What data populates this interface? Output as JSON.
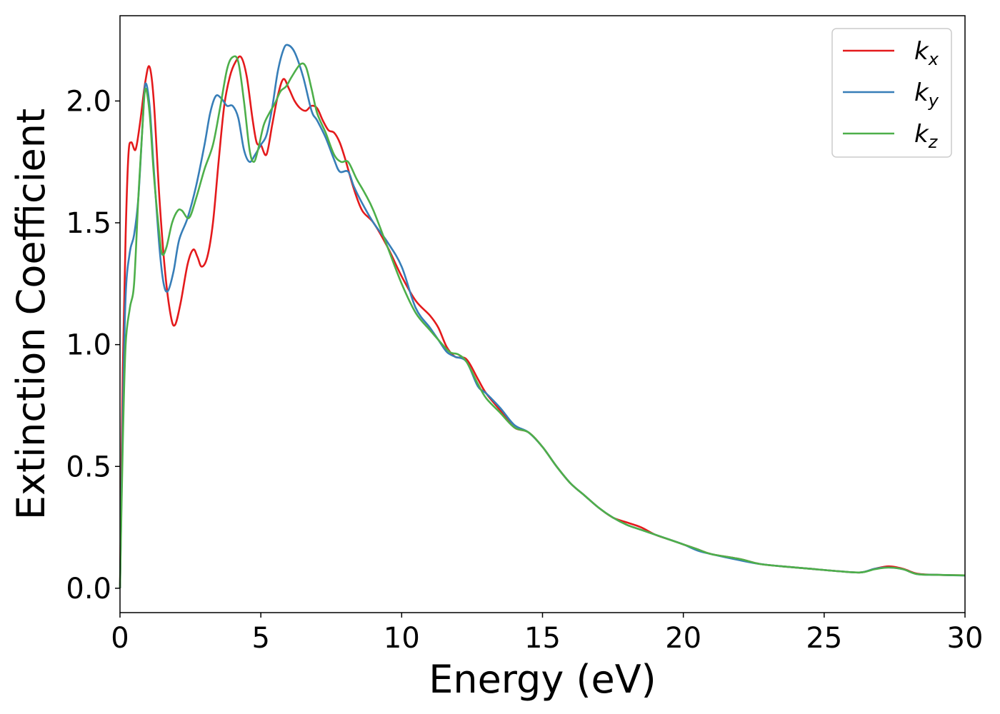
{
  "chart_data": {
    "type": "line",
    "title": "",
    "xlabel": "Energy (eV)",
    "ylabel": "Extinction Coefficient",
    "xlim": [
      0,
      30
    ],
    "ylim": [
      -0.1,
      2.35
    ],
    "xticks": [
      0,
      5,
      10,
      15,
      20,
      25,
      30
    ],
    "xtick_labels": [
      "0",
      "5",
      "10",
      "15",
      "20",
      "25",
      "30"
    ],
    "yticks": [
      0.0,
      0.5,
      1.0,
      1.5,
      2.0
    ],
    "ytick_labels": [
      "0.0",
      "0.5",
      "1.0",
      "1.5",
      "2.0"
    ],
    "grid": false,
    "legend_position": "top-right",
    "series": [
      {
        "name": "k",
        "subscript": "x",
        "color": "#e41a1c",
        "points": [
          [
            0,
            0
          ],
          [
            0.1,
            0.9
          ],
          [
            0.2,
            1.45
          ],
          [
            0.3,
            1.78
          ],
          [
            0.4,
            1.83
          ],
          [
            0.55,
            1.8
          ],
          [
            0.7,
            1.9
          ],
          [
            0.9,
            2.08
          ],
          [
            1.05,
            2.14
          ],
          [
            1.2,
            2.0
          ],
          [
            1.4,
            1.6
          ],
          [
            1.6,
            1.3
          ],
          [
            1.8,
            1.12
          ],
          [
            1.95,
            1.08
          ],
          [
            2.15,
            1.17
          ],
          [
            2.4,
            1.33
          ],
          [
            2.6,
            1.39
          ],
          [
            2.75,
            1.36
          ],
          [
            2.9,
            1.32
          ],
          [
            3.1,
            1.36
          ],
          [
            3.3,
            1.5
          ],
          [
            3.5,
            1.75
          ],
          [
            3.7,
            1.98
          ],
          [
            3.9,
            2.1
          ],
          [
            4.1,
            2.16
          ],
          [
            4.3,
            2.18
          ],
          [
            4.5,
            2.1
          ],
          [
            4.7,
            1.93
          ],
          [
            4.85,
            1.83
          ],
          [
            5.0,
            1.82
          ],
          [
            5.2,
            1.78
          ],
          [
            5.4,
            1.9
          ],
          [
            5.6,
            2.02
          ],
          [
            5.8,
            2.09
          ],
          [
            6.0,
            2.05
          ],
          [
            6.2,
            2.0
          ],
          [
            6.4,
            1.97
          ],
          [
            6.6,
            1.96
          ],
          [
            6.8,
            1.98
          ],
          [
            7.0,
            1.97
          ],
          [
            7.2,
            1.92
          ],
          [
            7.4,
            1.88
          ],
          [
            7.6,
            1.87
          ],
          [
            7.8,
            1.83
          ],
          [
            8.0,
            1.76
          ],
          [
            8.3,
            1.64
          ],
          [
            8.6,
            1.55
          ],
          [
            9.0,
            1.5
          ],
          [
            9.5,
            1.4
          ],
          [
            10.0,
            1.28
          ],
          [
            10.5,
            1.18
          ],
          [
            11.0,
            1.12
          ],
          [
            11.3,
            1.07
          ],
          [
            11.6,
            0.99
          ],
          [
            11.9,
            0.95
          ],
          [
            12.3,
            0.94
          ],
          [
            12.7,
            0.86
          ],
          [
            13.0,
            0.8
          ],
          [
            13.5,
            0.73
          ],
          [
            14.0,
            0.66
          ],
          [
            14.5,
            0.64
          ],
          [
            15.0,
            0.58
          ],
          [
            15.5,
            0.5
          ],
          [
            16.0,
            0.43
          ],
          [
            16.5,
            0.38
          ],
          [
            17.0,
            0.33
          ],
          [
            17.5,
            0.29
          ],
          [
            18.0,
            0.27
          ],
          [
            18.5,
            0.25
          ],
          [
            19.0,
            0.22
          ],
          [
            19.5,
            0.2
          ],
          [
            20.0,
            0.18
          ],
          [
            20.5,
            0.16
          ],
          [
            21.0,
            0.14
          ],
          [
            22.0,
            0.12
          ],
          [
            22.7,
            0.1
          ],
          [
            23.5,
            0.09
          ],
          [
            24.5,
            0.08
          ],
          [
            25.5,
            0.07
          ],
          [
            26.3,
            0.065
          ],
          [
            26.8,
            0.08
          ],
          [
            27.3,
            0.09
          ],
          [
            27.8,
            0.08
          ],
          [
            28.3,
            0.06
          ],
          [
            29.0,
            0.055
          ],
          [
            30.0,
            0.053
          ]
        ]
      },
      {
        "name": "k",
        "subscript": "y",
        "color": "#377eb8",
        "points": [
          [
            0,
            0
          ],
          [
            0.1,
            0.7
          ],
          [
            0.2,
            1.2
          ],
          [
            0.35,
            1.38
          ],
          [
            0.5,
            1.45
          ],
          [
            0.65,
            1.6
          ],
          [
            0.8,
            1.9
          ],
          [
            0.9,
            2.07
          ],
          [
            1.05,
            1.98
          ],
          [
            1.2,
            1.72
          ],
          [
            1.4,
            1.4
          ],
          [
            1.55,
            1.25
          ],
          [
            1.7,
            1.22
          ],
          [
            1.9,
            1.3
          ],
          [
            2.1,
            1.43
          ],
          [
            2.4,
            1.52
          ],
          [
            2.7,
            1.65
          ],
          [
            3.0,
            1.82
          ],
          [
            3.2,
            1.95
          ],
          [
            3.4,
            2.02
          ],
          [
            3.6,
            2.01
          ],
          [
            3.8,
            1.98
          ],
          [
            4.0,
            1.98
          ],
          [
            4.2,
            1.93
          ],
          [
            4.4,
            1.8
          ],
          [
            4.6,
            1.75
          ],
          [
            4.8,
            1.78
          ],
          [
            5.0,
            1.82
          ],
          [
            5.2,
            1.86
          ],
          [
            5.4,
            1.97
          ],
          [
            5.6,
            2.12
          ],
          [
            5.8,
            2.21
          ],
          [
            5.95,
            2.23
          ],
          [
            6.2,
            2.2
          ],
          [
            6.5,
            2.1
          ],
          [
            6.8,
            1.96
          ],
          [
            7.0,
            1.92
          ],
          [
            7.3,
            1.85
          ],
          [
            7.6,
            1.76
          ],
          [
            7.8,
            1.71
          ],
          [
            8.1,
            1.71
          ],
          [
            8.3,
            1.65
          ],
          [
            8.6,
            1.58
          ],
          [
            9.0,
            1.5
          ],
          [
            9.5,
            1.42
          ],
          [
            10.0,
            1.32
          ],
          [
            10.5,
            1.15
          ],
          [
            11.0,
            1.07
          ],
          [
            11.3,
            1.02
          ],
          [
            11.6,
            0.97
          ],
          [
            11.9,
            0.95
          ],
          [
            12.3,
            0.93
          ],
          [
            12.7,
            0.83
          ],
          [
            13.0,
            0.8
          ],
          [
            13.5,
            0.74
          ],
          [
            14.0,
            0.67
          ],
          [
            14.5,
            0.64
          ],
          [
            15.0,
            0.58
          ],
          [
            15.5,
            0.5
          ],
          [
            16.0,
            0.43
          ],
          [
            16.5,
            0.38
          ],
          [
            17.0,
            0.33
          ],
          [
            17.5,
            0.29
          ],
          [
            18.0,
            0.26
          ],
          [
            18.5,
            0.24
          ],
          [
            19.0,
            0.22
          ],
          [
            19.5,
            0.2
          ],
          [
            20.0,
            0.18
          ],
          [
            20.5,
            0.155
          ],
          [
            21.0,
            0.14
          ],
          [
            22.0,
            0.115
          ],
          [
            22.7,
            0.1
          ],
          [
            23.5,
            0.09
          ],
          [
            24.5,
            0.08
          ],
          [
            25.5,
            0.07
          ],
          [
            26.3,
            0.065
          ],
          [
            26.8,
            0.08
          ],
          [
            27.3,
            0.085
          ],
          [
            27.8,
            0.078
          ],
          [
            28.3,
            0.058
          ],
          [
            29.0,
            0.055
          ],
          [
            30.0,
            0.052
          ]
        ]
      },
      {
        "name": "k",
        "subscript": "z",
        "color": "#4daf4a",
        "points": [
          [
            0,
            0
          ],
          [
            0.1,
            0.6
          ],
          [
            0.2,
            1.0
          ],
          [
            0.35,
            1.15
          ],
          [
            0.5,
            1.25
          ],
          [
            0.65,
            1.6
          ],
          [
            0.8,
            1.9
          ],
          [
            0.9,
            2.05
          ],
          [
            1.05,
            1.95
          ],
          [
            1.2,
            1.7
          ],
          [
            1.4,
            1.45
          ],
          [
            1.5,
            1.37
          ],
          [
            1.65,
            1.4
          ],
          [
            1.85,
            1.5
          ],
          [
            2.05,
            1.55
          ],
          [
            2.2,
            1.55
          ],
          [
            2.45,
            1.52
          ],
          [
            2.7,
            1.6
          ],
          [
            3.0,
            1.72
          ],
          [
            3.3,
            1.82
          ],
          [
            3.55,
            1.97
          ],
          [
            3.8,
            2.13
          ],
          [
            4.0,
            2.18
          ],
          [
            4.2,
            2.16
          ],
          [
            4.4,
            2.0
          ],
          [
            4.6,
            1.8
          ],
          [
            4.75,
            1.75
          ],
          [
            4.9,
            1.8
          ],
          [
            5.1,
            1.9
          ],
          [
            5.3,
            1.95
          ],
          [
            5.5,
            1.99
          ],
          [
            5.7,
            2.04
          ],
          [
            5.9,
            2.06
          ],
          [
            6.1,
            2.1
          ],
          [
            6.4,
            2.15
          ],
          [
            6.6,
            2.14
          ],
          [
            6.8,
            2.05
          ],
          [
            7.0,
            1.95
          ],
          [
            7.3,
            1.87
          ],
          [
            7.6,
            1.78
          ],
          [
            7.85,
            1.75
          ],
          [
            8.1,
            1.75
          ],
          [
            8.4,
            1.68
          ],
          [
            8.7,
            1.62
          ],
          [
            9.0,
            1.55
          ],
          [
            9.5,
            1.4
          ],
          [
            10.0,
            1.25
          ],
          [
            10.5,
            1.13
          ],
          [
            11.0,
            1.06
          ],
          [
            11.3,
            1.02
          ],
          [
            11.7,
            0.97
          ],
          [
            12.0,
            0.96
          ],
          [
            12.3,
            0.93
          ],
          [
            12.7,
            0.84
          ],
          [
            13.0,
            0.78
          ],
          [
            13.5,
            0.72
          ],
          [
            14.0,
            0.66
          ],
          [
            14.5,
            0.64
          ],
          [
            15.0,
            0.58
          ],
          [
            15.5,
            0.5
          ],
          [
            16.0,
            0.43
          ],
          [
            16.5,
            0.38
          ],
          [
            17.0,
            0.33
          ],
          [
            17.5,
            0.29
          ],
          [
            18.0,
            0.26
          ],
          [
            18.5,
            0.24
          ],
          [
            19.0,
            0.22
          ],
          [
            19.5,
            0.2
          ],
          [
            20.0,
            0.18
          ],
          [
            20.5,
            0.16
          ],
          [
            21.0,
            0.14
          ],
          [
            22.0,
            0.12
          ],
          [
            22.7,
            0.1
          ],
          [
            23.5,
            0.09
          ],
          [
            24.5,
            0.08
          ],
          [
            25.5,
            0.07
          ],
          [
            26.3,
            0.065
          ],
          [
            26.8,
            0.078
          ],
          [
            27.3,
            0.085
          ],
          [
            27.8,
            0.078
          ],
          [
            28.3,
            0.058
          ],
          [
            29.0,
            0.055
          ],
          [
            30.0,
            0.053
          ]
        ]
      }
    ]
  }
}
